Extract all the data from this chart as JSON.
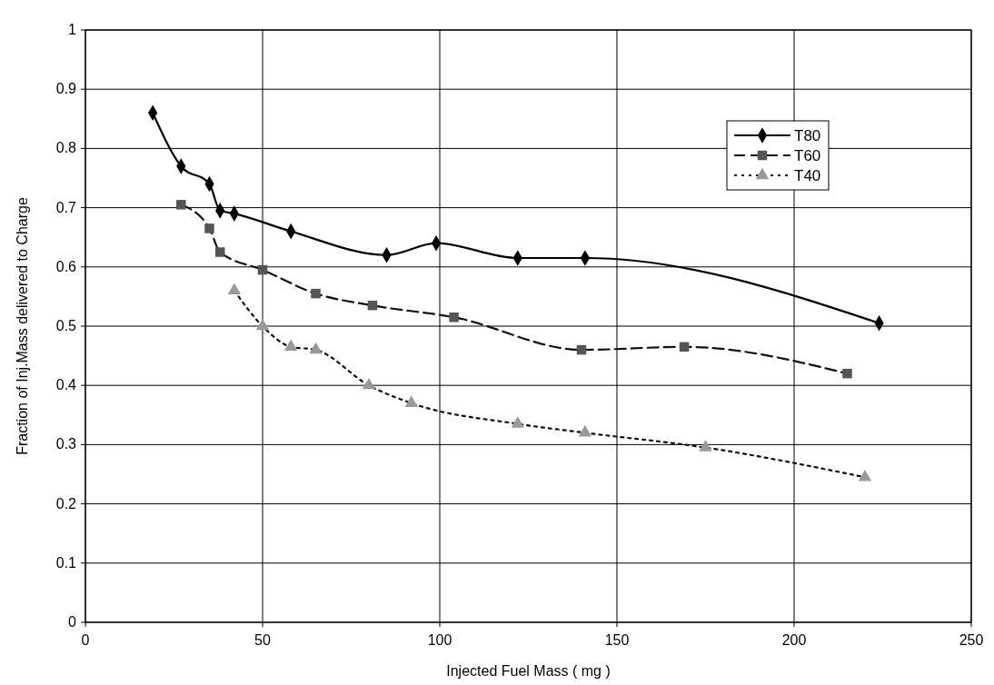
{
  "chart_data": {
    "type": "line",
    "xlabel": "Injected Fuel Mass  ( mg )",
    "ylabel": "Fraction of Inj.Mass delivered to Charge",
    "xlim": [
      0,
      250
    ],
    "xticks": [
      0,
      50,
      100,
      150,
      200,
      250
    ],
    "ylim": [
      0,
      1
    ],
    "yticks": [
      0,
      0.1,
      0.2,
      0.3,
      0.4,
      0.5,
      0.6,
      0.7,
      0.8,
      0.9,
      1
    ],
    "grid": true,
    "legend": "top right",
    "series": [
      {
        "name": "T80",
        "color": "#000000",
        "marker": "diamond",
        "line_style": "solid",
        "x": [
          19,
          27,
          35,
          38,
          42,
          58,
          85,
          99,
          122,
          141,
          224
        ],
        "values": [
          0.86,
          0.77,
          0.74,
          0.695,
          0.69,
          0.66,
          0.62,
          0.64,
          0.615,
          0.615,
          0.505
        ]
      },
      {
        "name": "T60",
        "color": "#555555",
        "marker": "square",
        "line_style": "dashed",
        "x": [
          27,
          35,
          38,
          50,
          65,
          81,
          104,
          140,
          169,
          215
        ],
        "values": [
          0.705,
          0.665,
          0.625,
          0.595,
          0.555,
          0.535,
          0.515,
          0.46,
          0.465,
          0.42
        ]
      },
      {
        "name": "T40",
        "color": "#999999",
        "marker": "triangle",
        "line_style": "dotted",
        "x": [
          42,
          50,
          58,
          65,
          80,
          92,
          122,
          141,
          175,
          220
        ],
        "values": [
          0.56,
          0.5,
          0.465,
          0.46,
          0.4,
          0.37,
          0.335,
          0.32,
          0.295,
          0.245
        ]
      }
    ]
  }
}
